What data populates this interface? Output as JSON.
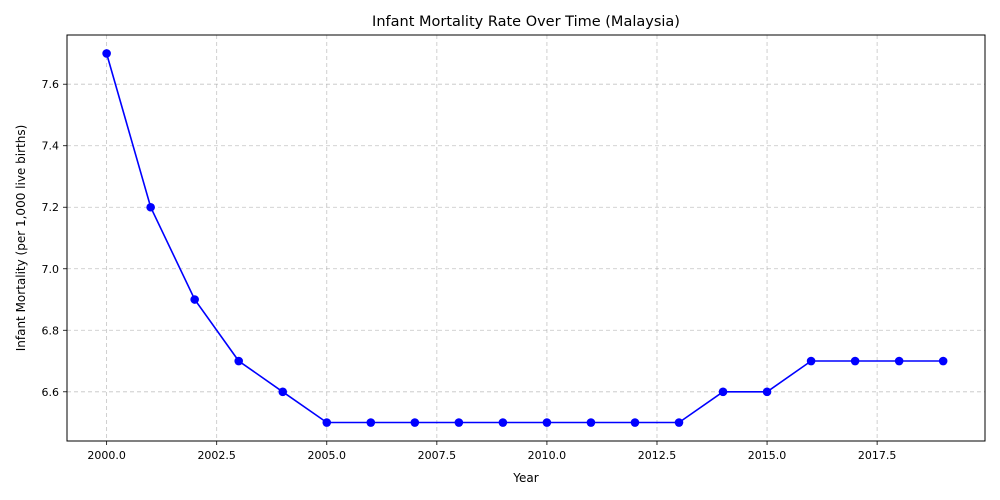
{
  "chart_data": {
    "type": "line",
    "title": "Infant Mortality Rate Over Time (Malaysia)",
    "xlabel": "Year",
    "ylabel": "Infant Mortality (per 1,000 live births)",
    "xlim": [
      1999.1,
      2019.95
    ],
    "ylim": [
      6.44,
      7.76
    ],
    "x_ticks": [
      2000.0,
      2002.5,
      2005.0,
      2007.5,
      2010.0,
      2012.5,
      2015.0,
      2017.5
    ],
    "x_tick_labels": [
      "2000.0",
      "2002.5",
      "2005.0",
      "2007.5",
      "2010.0",
      "2012.5",
      "2015.0",
      "2017.5"
    ],
    "y_ticks": [
      6.6,
      6.8,
      7.0,
      7.2,
      7.4,
      7.6
    ],
    "y_tick_labels": [
      "6.6",
      "6.8",
      "7.0",
      "7.2",
      "7.4",
      "7.6"
    ],
    "grid": true,
    "series": [
      {
        "color": "#0000ff",
        "marker": "circle",
        "x": [
          2000,
          2001,
          2002,
          2003,
          2004,
          2005,
          2006,
          2007,
          2008,
          2009,
          2010,
          2011,
          2012,
          2013,
          2014,
          2015,
          2016,
          2017,
          2018,
          2019
        ],
        "y": [
          7.7,
          7.2,
          6.9,
          6.7,
          6.6,
          6.5,
          6.5,
          6.5,
          6.5,
          6.5,
          6.5,
          6.5,
          6.5,
          6.5,
          6.6,
          6.6,
          6.7,
          6.7,
          6.7,
          6.7
        ]
      }
    ]
  }
}
